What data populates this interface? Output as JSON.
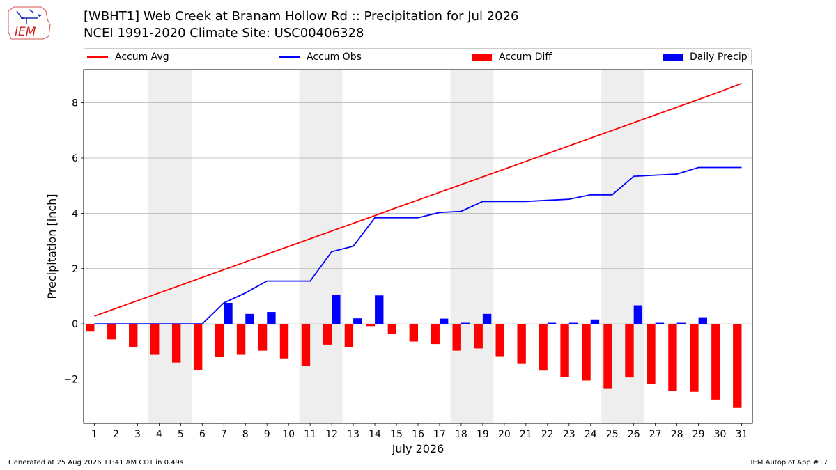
{
  "header": {
    "title_line1": "[WBHT1] Web Creek at Branam Hollow Rd :: Precipitation for Jul 2026",
    "title_line2": "NCEI 1991-2020 Climate Site: USC00406328",
    "logo_text": "IEM"
  },
  "footer": {
    "generated": "Generated at 25 Aug 2026 11:41 AM CDT in 0.49s",
    "app": "IEM Autoplot App #17"
  },
  "colors": {
    "avg": "#ff0000",
    "obs": "#0000ff",
    "diff": "#ff0000",
    "daily": "#0000ff",
    "weekend_shade": "#eeeeee",
    "grid": "#b0b0b0"
  },
  "chart_data": {
    "type": "bar",
    "title": "[WBHT1] Web Creek at Branam Hollow Rd :: Precipitation for Jul 2026",
    "subtitle": "NCEI 1991-2020 Climate Site: USC00406328",
    "xlabel": "July 2026",
    "ylabel": "Precipitation [inch]",
    "xlim": [
      0.5,
      31.5
    ],
    "ylim": [
      -3.6,
      9.2
    ],
    "yticks": [
      -2,
      0,
      2,
      4,
      6,
      8
    ],
    "grid": "horizontal",
    "legend_placement": "top",
    "shaded_weekends": [
      [
        3.5,
        5.5
      ],
      [
        10.5,
        12.5
      ],
      [
        17.5,
        19.5
      ],
      [
        24.5,
        26.5
      ]
    ],
    "categories": [
      "1",
      "2",
      "3",
      "4",
      "5",
      "6",
      "7",
      "8",
      "9",
      "10",
      "11",
      "12",
      "13",
      "14",
      "15",
      "16",
      "17",
      "18",
      "19",
      "20",
      "21",
      "22",
      "23",
      "24",
      "25",
      "26",
      "27",
      "28",
      "29",
      "30",
      "31"
    ],
    "series": [
      {
        "name": "Accum Avg",
        "kind": "line",
        "values": [
          0.28,
          0.56,
          0.84,
          1.12,
          1.4,
          1.68,
          1.96,
          2.24,
          2.52,
          2.8,
          3.08,
          3.36,
          3.64,
          3.92,
          4.2,
          4.48,
          4.76,
          5.04,
          5.32,
          5.6,
          5.88,
          6.16,
          6.44,
          6.72,
          7.0,
          7.28,
          7.56,
          7.84,
          8.12,
          8.4,
          8.7
        ]
      },
      {
        "name": "Accum Obs",
        "kind": "line",
        "values": [
          0,
          0,
          0,
          0,
          0,
          0,
          0.76,
          1.12,
          1.55,
          1.55,
          1.55,
          2.61,
          2.81,
          3.84,
          3.84,
          3.84,
          4.03,
          4.07,
          4.43,
          4.43,
          4.43,
          4.47,
          4.51,
          4.67,
          4.67,
          5.34,
          5.38,
          5.42,
          5.66,
          5.66,
          5.66
        ]
      },
      {
        "name": "Accum Diff",
        "kind": "bar",
        "values": [
          -0.28,
          -0.56,
          -0.84,
          -1.12,
          -1.4,
          -1.68,
          -1.2,
          -1.12,
          -0.97,
          -1.25,
          -1.53,
          -0.75,
          -0.83,
          -0.08,
          -0.36,
          -0.64,
          -0.73,
          -0.97,
          -0.89,
          -1.17,
          -1.45,
          -1.69,
          -1.93,
          -2.05,
          -2.33,
          -1.94,
          -2.18,
          -2.42,
          -2.46,
          -2.74,
          -3.04
        ]
      },
      {
        "name": "Daily Precip",
        "kind": "bar",
        "values": [
          0,
          0,
          0,
          0,
          0,
          0,
          0.76,
          0.36,
          0.43,
          0,
          0,
          1.06,
          0.2,
          1.03,
          0,
          0,
          0.19,
          0.04,
          0.36,
          0,
          0,
          0.04,
          0.04,
          0.16,
          0,
          0.67,
          0.04,
          0.04,
          0.24,
          0,
          0
        ]
      }
    ]
  }
}
